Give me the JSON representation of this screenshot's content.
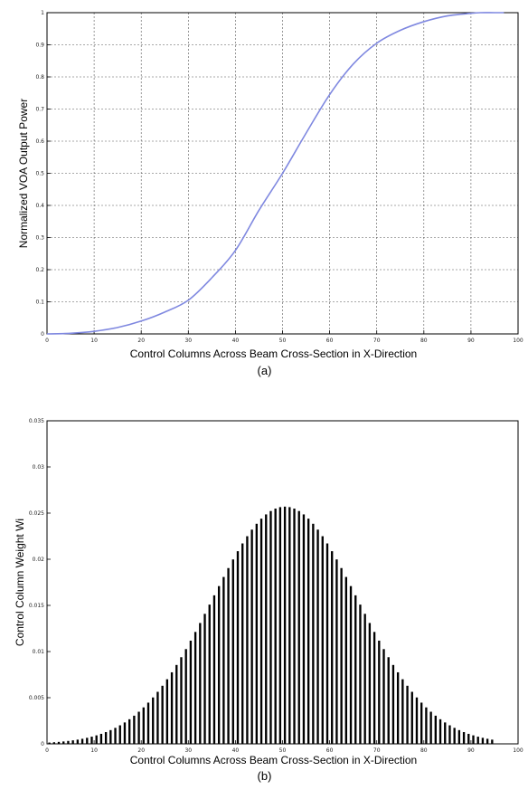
{
  "chart_data": [
    {
      "type": "line",
      "caption": "(a)",
      "xlabel": "Control Columns Across Beam Cross-Section in X-Direction",
      "ylabel": "Normalized VOA Output Power",
      "xlim": [
        0,
        100
      ],
      "ylim": [
        0,
        1
      ],
      "grid": true,
      "x_ticks": [
        "0",
        "10",
        "20",
        "30",
        "40",
        "50",
        "60",
        "70",
        "80",
        "90",
        "100"
      ],
      "y_ticks": [
        "0",
        "0.1",
        "0.2",
        "0.3",
        "0.4",
        "0.5",
        "0.6",
        "0.7",
        "0.8",
        "0.9",
        "1"
      ],
      "color": "#7f88e0",
      "series": [
        {
          "x": [
            0,
            5,
            10,
            15,
            20,
            25,
            30,
            35,
            40,
            45,
            50,
            55,
            60,
            65,
            70,
            75,
            80,
            85,
            90,
            92,
            95,
            97
          ],
          "y": [
            0.0,
            0.002,
            0.008,
            0.02,
            0.04,
            0.068,
            0.105,
            0.175,
            0.26,
            0.385,
            0.5,
            0.625,
            0.745,
            0.84,
            0.905,
            0.945,
            0.972,
            0.99,
            0.998,
            1.0,
            1.0,
            1.0
          ]
        }
      ]
    },
    {
      "type": "bar",
      "caption": "(b)",
      "xlabel": "Control Columns Across Beam Cross-Section in X-Direction",
      "ylabel": "Control Column Weight Wi",
      "xlim": [
        0,
        100
      ],
      "ylim": [
        0,
        0.035
      ],
      "grid": false,
      "x_ticks": [
        "0",
        "10",
        "20",
        "30",
        "40",
        "50",
        "60",
        "70",
        "80",
        "90",
        "100"
      ],
      "y_ticks": [
        "0",
        "0.005",
        "0.01",
        "0.015",
        "0.02",
        "0.025",
        "0.03",
        "0.035"
      ],
      "bar_color": "#000000",
      "gaussian": {
        "mean": 50,
        "sigma": 15.5,
        "peak": 0.0257,
        "n_bars": 95
      }
    }
  ]
}
